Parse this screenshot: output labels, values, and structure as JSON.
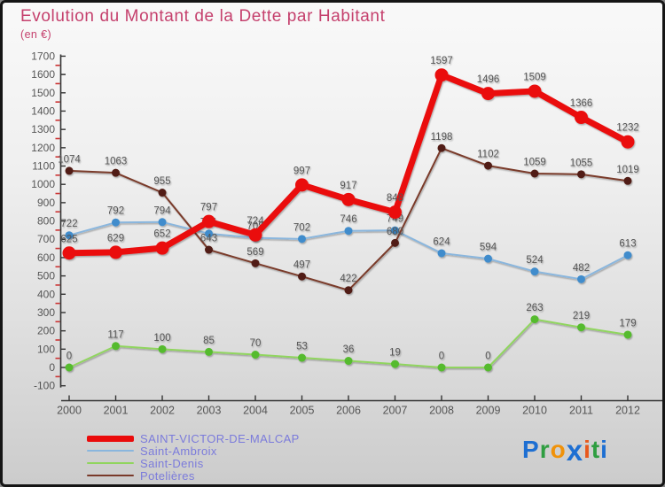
{
  "title": "Evolution du Montant de la Dette par Habitant",
  "subtitle": "(en €)",
  "title_color": "#c5406d",
  "chart_data": {
    "type": "line",
    "x": [
      2000,
      2001,
      2002,
      2003,
      2004,
      2005,
      2006,
      2007,
      2008,
      2009,
      2010,
      2011,
      2012
    ],
    "series": [
      {
        "name": "SAINT-VICTOR-DE-MALCAP",
        "values": [
          625,
          629,
          652,
          797,
          724,
          997,
          917,
          848,
          1597,
          1496,
          1509,
          1366,
          1232
        ],
        "line_color": "#ea0b0b",
        "dot_color": "#ea0b0b",
        "line_width": 7,
        "dot_radius": 7.5
      },
      {
        "name": "Saint-Ambroix",
        "values": [
          722,
          792,
          794,
          731,
          708,
          702,
          746,
          749,
          624,
          594,
          524,
          482,
          613
        ],
        "line_color": "#8ab6dd",
        "dot_color": "#3f8ccc",
        "line_width": 2,
        "dot_radius": 4.5
      },
      {
        "name": "Saint-Denis",
        "values": [
          0,
          117,
          100,
          85,
          70,
          53,
          36,
          19,
          0,
          0,
          263,
          219,
          179
        ],
        "line_color": "#90d55e",
        "dot_color": "#55bb2d",
        "line_width": 2,
        "dot_radius": 4.5
      },
      {
        "name": "Potelières",
        "values": [
          1074,
          1063,
          955,
          643,
          569,
          497,
          422,
          680,
          1198,
          1102,
          1059,
          1055,
          1019
        ],
        "line_color": "#7a3a2a",
        "dot_color": "#511d13",
        "line_width": 2,
        "dot_radius": 4.5
      }
    ],
    "ylim": [
      -100,
      1700
    ],
    "ytick_step": 100,
    "grid": false,
    "legend_position": "bottom-left",
    "axis_color": "#333333",
    "tick_label_color": "#555555",
    "data_label_color": "#555555",
    "minor_tick_color": "#cc3333"
  },
  "logo": {
    "letters": [
      {
        "ch": "P",
        "color": "#1e6fd2"
      },
      {
        "ch": "r",
        "color": "#2f9e41"
      },
      {
        "ch": "o",
        "color": "#f0920a"
      },
      {
        "ch": "x",
        "color": "#1e6fd2"
      },
      {
        "ch": "i",
        "color": "#e8581c"
      },
      {
        "ch": "t",
        "color": "#2f9e41"
      },
      {
        "ch": "i",
        "color": "#1e6fd2"
      }
    ]
  }
}
